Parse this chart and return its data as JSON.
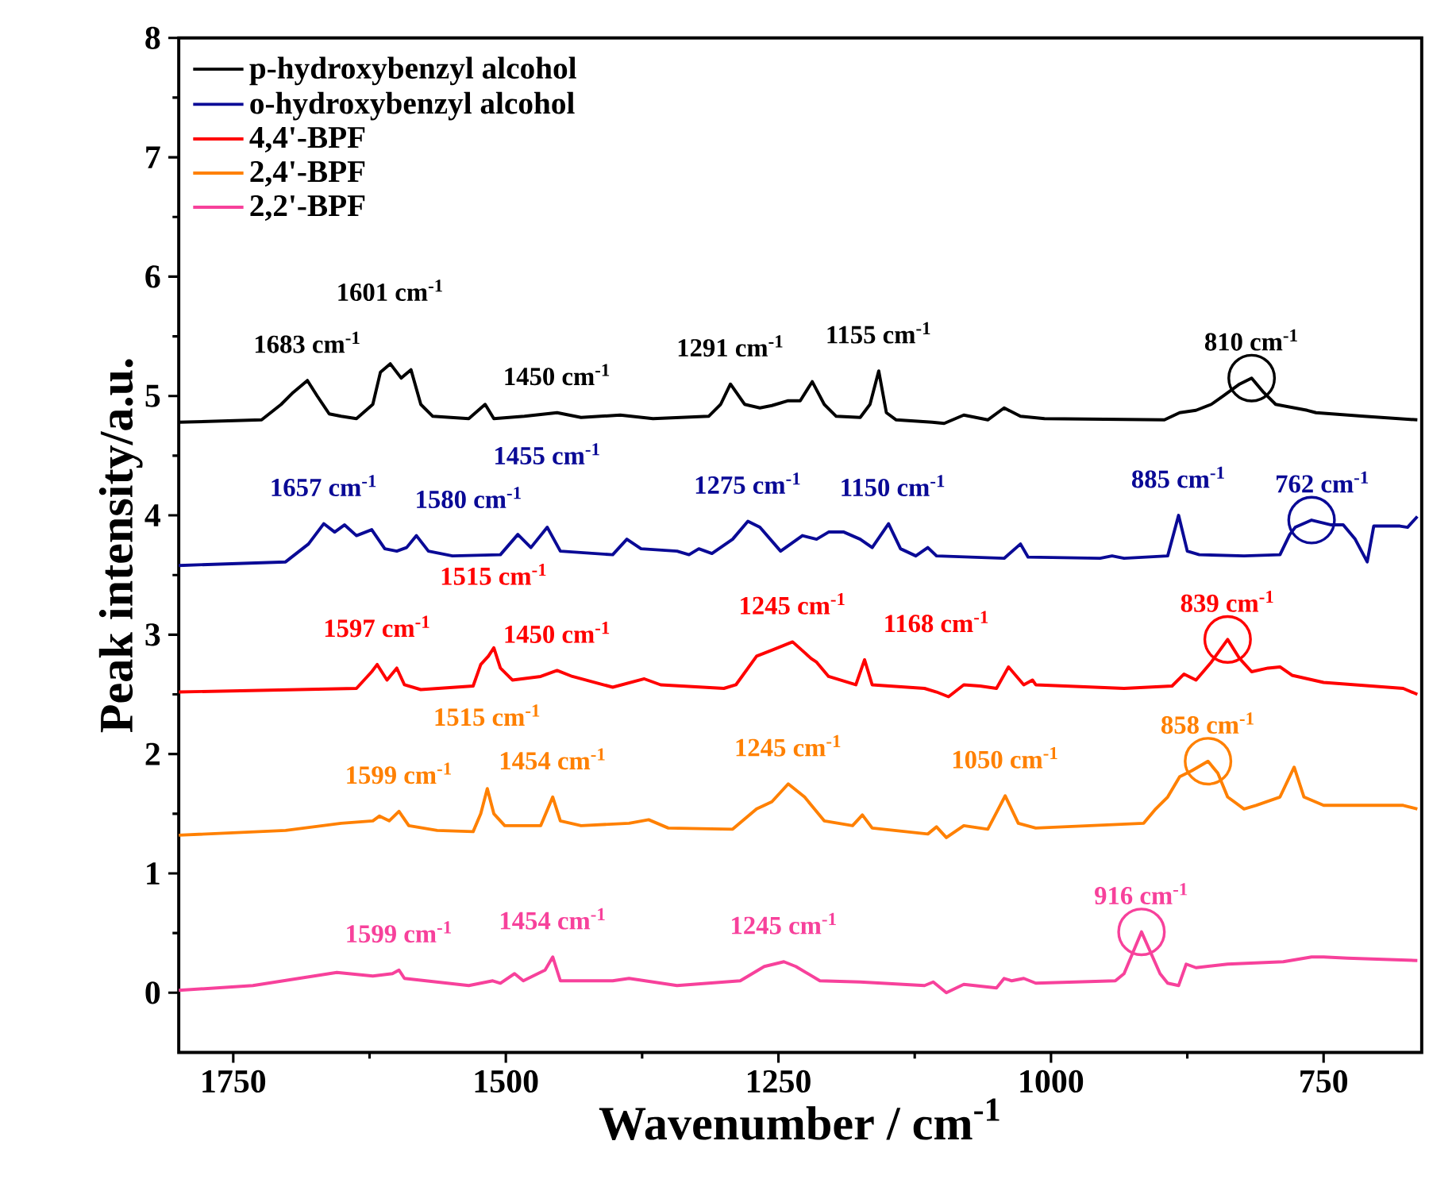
{
  "chart_data": {
    "type": "line",
    "xlabel": "Wavenumber / cm$^{-1}$",
    "ylabel": "Peak intensity/a.u.",
    "xlim": [
      1800,
      660
    ],
    "xticks": [
      1750,
      1500,
      1250,
      1000,
      750
    ],
    "ylim": [
      -0.5,
      8
    ],
    "yticks": [
      0,
      1,
      2,
      3,
      4,
      5,
      6,
      7,
      8
    ],
    "legend": "top left",
    "line_style": "solid",
    "series": [
      {
        "name": "p-hydroxybenzyl alcohol",
        "color": "#000000",
        "x": [
          1800,
          1724,
          1706,
          1695,
          1682,
          1673,
          1662,
          1651,
          1637,
          1622,
          1615,
          1606,
          1596,
          1587,
          1578,
          1567,
          1534,
          1519,
          1511,
          1483,
          1453,
          1431,
          1395,
          1365,
          1314,
          1303,
          1294,
          1281,
          1267,
          1256,
          1241,
          1230,
          1219,
          1208,
          1197,
          1175,
          1166,
          1158,
          1151,
          1142,
          1109,
          1098,
          1080,
          1058,
          1043,
          1028,
          1006,
          896,
          882,
          867,
          853,
          842,
          827,
          816,
          805,
          794,
          765,
          757,
          713,
          664
        ],
        "values": [
          4.78,
          4.8,
          4.93,
          5.03,
          5.13,
          5.0,
          4.85,
          4.83,
          4.81,
          4.93,
          5.2,
          5.27,
          5.15,
          5.22,
          4.93,
          4.83,
          4.81,
          4.93,
          4.81,
          4.83,
          4.86,
          4.82,
          4.84,
          4.81,
          4.83,
          4.93,
          5.1,
          4.93,
          4.9,
          4.92,
          4.96,
          4.96,
          5.12,
          4.93,
          4.83,
          4.82,
          4.93,
          5.21,
          4.86,
          4.8,
          4.78,
          4.77,
          4.84,
          4.8,
          4.9,
          4.83,
          4.81,
          4.8,
          4.86,
          4.88,
          4.93,
          5.0,
          5.1,
          5.15,
          5.03,
          4.93,
          4.88,
          4.86,
          4.83,
          4.8
        ]
      },
      {
        "name": "o-hydroxybenzyl alcohol",
        "color": "#0a0a96",
        "x": [
          1800,
          1702,
          1681,
          1667,
          1657,
          1648,
          1637,
          1623,
          1611,
          1600,
          1591,
          1582,
          1571,
          1549,
          1505,
          1489,
          1477,
          1462,
          1450,
          1402,
          1389,
          1376,
          1343,
          1332,
          1323,
          1311,
          1292,
          1278,
          1267,
          1248,
          1228,
          1215,
          1204,
          1190,
          1175,
          1164,
          1149,
          1138,
          1124,
          1113,
          1105,
          1043,
          1028,
          1021,
          955,
          944,
          933,
          893,
          883,
          875,
          864,
          823,
          790,
          781,
          776,
          761,
          743,
          732,
          721,
          710,
          704,
          680,
          673,
          664
        ],
        "values": [
          3.58,
          3.61,
          3.76,
          3.93,
          3.86,
          3.92,
          3.83,
          3.88,
          3.72,
          3.7,
          3.73,
          3.83,
          3.7,
          3.66,
          3.67,
          3.84,
          3.73,
          3.9,
          3.7,
          3.67,
          3.8,
          3.72,
          3.7,
          3.67,
          3.72,
          3.68,
          3.8,
          3.95,
          3.9,
          3.7,
          3.83,
          3.8,
          3.86,
          3.86,
          3.8,
          3.73,
          3.93,
          3.72,
          3.66,
          3.73,
          3.66,
          3.64,
          3.76,
          3.65,
          3.64,
          3.66,
          3.64,
          3.66,
          4.0,
          3.7,
          3.67,
          3.66,
          3.67,
          3.84,
          3.9,
          3.96,
          3.92,
          3.92,
          3.8,
          3.61,
          3.91,
          3.91,
          3.9,
          3.99
        ]
      },
      {
        "name": "4,4'-BPF",
        "color": "#ff0000",
        "x": [
          1800,
          1637,
          1623,
          1618,
          1609,
          1600,
          1593,
          1578,
          1530,
          1523,
          1516,
          1511,
          1505,
          1494,
          1468,
          1453,
          1439,
          1402,
          1373,
          1358,
          1300,
          1289,
          1270,
          1256,
          1237,
          1226,
          1220,
          1215,
          1204,
          1179,
          1171,
          1164,
          1116,
          1105,
          1094,
          1080,
          1065,
          1050,
          1039,
          1025,
          1017,
          1014,
          933,
          889,
          878,
          867,
          853,
          838,
          827,
          816,
          801,
          790,
          779,
          750,
          677,
          664
        ],
        "values": [
          2.52,
          2.55,
          2.69,
          2.75,
          2.62,
          2.72,
          2.58,
          2.54,
          2.57,
          2.75,
          2.82,
          2.89,
          2.72,
          2.62,
          2.65,
          2.7,
          2.65,
          2.56,
          2.63,
          2.58,
          2.55,
          2.58,
          2.82,
          2.87,
          2.94,
          2.85,
          2.8,
          2.77,
          2.65,
          2.58,
          2.79,
          2.58,
          2.55,
          2.52,
          2.48,
          2.58,
          2.57,
          2.55,
          2.73,
          2.58,
          2.62,
          2.58,
          2.55,
          2.57,
          2.67,
          2.62,
          2.77,
          2.96,
          2.8,
          2.69,
          2.72,
          2.73,
          2.66,
          2.6,
          2.55,
          2.5
        ]
      },
      {
        "name": "2,4'-BPF",
        "color": "#ff8000",
        "x": [
          1800,
          1702,
          1651,
          1622,
          1616,
          1607,
          1598,
          1589,
          1563,
          1530,
          1523,
          1517,
          1511,
          1501,
          1468,
          1457,
          1450,
          1431,
          1387,
          1369,
          1351,
          1292,
          1270,
          1256,
          1241,
          1226,
          1208,
          1182,
          1173,
          1164,
          1113,
          1105,
          1096,
          1080,
          1058,
          1042,
          1030,
          1014,
          915,
          904,
          893,
          882,
          871,
          856,
          847,
          838,
          823,
          812,
          790,
          777,
          768,
          750,
          677,
          664
        ],
        "values": [
          1.32,
          1.36,
          1.42,
          1.44,
          1.48,
          1.44,
          1.52,
          1.4,
          1.36,
          1.35,
          1.5,
          1.71,
          1.5,
          1.4,
          1.4,
          1.64,
          1.44,
          1.4,
          1.42,
          1.45,
          1.38,
          1.37,
          1.54,
          1.6,
          1.75,
          1.64,
          1.44,
          1.4,
          1.49,
          1.38,
          1.33,
          1.39,
          1.3,
          1.4,
          1.37,
          1.65,
          1.42,
          1.38,
          1.42,
          1.54,
          1.64,
          1.81,
          1.86,
          1.94,
          1.84,
          1.64,
          1.54,
          1.57,
          1.64,
          1.89,
          1.64,
          1.57,
          1.57,
          1.54
        ]
      },
      {
        "name": "2,2'-BPF",
        "color": "#f7419b",
        "x": [
          1800,
          1732,
          1655,
          1622,
          1604,
          1598,
          1593,
          1534,
          1512,
          1505,
          1492,
          1484,
          1464,
          1457,
          1450,
          1402,
          1387,
          1343,
          1285,
          1263,
          1245,
          1234,
          1212,
          1175,
          1116,
          1108,
          1096,
          1080,
          1050,
          1043,
          1036,
          1025,
          1014,
          941,
          933,
          917,
          900,
          893,
          883,
          876,
          867,
          838,
          787,
          761,
          750,
          728,
          664
        ],
        "values": [
          0.02,
          0.06,
          0.17,
          0.14,
          0.16,
          0.19,
          0.12,
          0.06,
          0.1,
          0.08,
          0.16,
          0.1,
          0.19,
          0.3,
          0.1,
          0.1,
          0.12,
          0.06,
          0.1,
          0.22,
          0.26,
          0.22,
          0.1,
          0.09,
          0.06,
          0.09,
          0.0,
          0.07,
          0.04,
          0.12,
          0.1,
          0.12,
          0.08,
          0.1,
          0.16,
          0.51,
          0.16,
          0.08,
          0.06,
          0.24,
          0.21,
          0.24,
          0.26,
          0.3,
          0.3,
          0.29,
          0.27
        ]
      },
      {
        "type": "scatter",
        "marker": "circle",
        "x": [
          816,
          761,
          838,
          856,
          917
        ],
        "values": [
          5.15,
          3.96,
          2.96,
          1.94,
          0.51
        ],
        "colors": [
          "#000000",
          "#0a0a96",
          "#ff0000",
          "#ff8000",
          "#f7419b"
        ]
      }
    ],
    "annotations": [
      {
        "text": "1683 cm$^{-1}$",
        "x": 1682,
        "y": 5.13
      },
      {
        "text": "1601 cm$^{-1}$",
        "x": 1606,
        "y": 5.27
      },
      {
        "text": "1450 cm$^{-1}$",
        "x": 1453,
        "y": 4.86
      },
      {
        "text": "1291 cm$^{-1}$",
        "x": 1294,
        "y": 5.1
      },
      {
        "text": "1155 cm$^{-1}$",
        "x": 1158,
        "y": 5.21
      },
      {
        "text": "810 cm$^{-1}$",
        "x": 816,
        "y": 5.15
      },
      {
        "text": "1657 cm$^{-1}$",
        "x": 1667,
        "y": 3.93
      },
      {
        "text": "1580 cm$^{-1}$",
        "x": 1582,
        "y": 3.83
      },
      {
        "text": "1455 cm$^{-1}$",
        "x": 1462,
        "y": 3.9
      },
      {
        "text": "1275 cm$^{-1}$",
        "x": 1278,
        "y": 3.95
      },
      {
        "text": "1150 cm$^{-1}$",
        "x": 1149,
        "y": 3.93
      },
      {
        "text": "885 cm$^{-1}$",
        "x": 883,
        "y": 4.0
      },
      {
        "text": "762 cm$^{-1}$",
        "x": 761,
        "y": 3.96
      },
      {
        "text": "1515 cm$^{-1}$",
        "x": 1511,
        "y": 2.89
      },
      {
        "text": "1597 cm$^{-1}$",
        "x": 1618,
        "y": 2.75
      },
      {
        "text": "1450 cm$^{-1}$",
        "x": 1453,
        "y": 2.7
      },
      {
        "text": "1245 cm$^{-1}$",
        "x": 1237,
        "y": 2.94
      },
      {
        "text": "1168 cm$^{-1}$",
        "x": 1171,
        "y": 2.79
      },
      {
        "text": "839 cm$^{-1}$",
        "x": 838,
        "y": 2.96
      },
      {
        "text": "858 cm$^{-1}$",
        "x": 856,
        "y": 1.94
      },
      {
        "text": "1515 cm$^{-1}$",
        "x": 1517,
        "y": 1.71
      },
      {
        "text": "1599 cm$^{-1}$",
        "x": 1598,
        "y": 1.52
      },
      {
        "text": "1454 cm$^{-1}$",
        "x": 1457,
        "y": 1.64
      },
      {
        "text": "1245 cm$^{-1}$",
        "x": 1241,
        "y": 1.75
      },
      {
        "text": "1050 cm$^{-1}$",
        "x": 1042,
        "y": 1.65
      },
      {
        "text": "916 cm$^{-1}$",
        "x": 917,
        "y": 0.51
      },
      {
        "text": "1599 cm$^{-1}$",
        "x": 1598,
        "y": 0.19
      },
      {
        "text": "1454 cm$^{-1}$",
        "x": 1457,
        "y": 0.3
      },
      {
        "text": "1245 cm$^{-1}$",
        "x": 1245,
        "y": 0.26
      }
    ]
  }
}
